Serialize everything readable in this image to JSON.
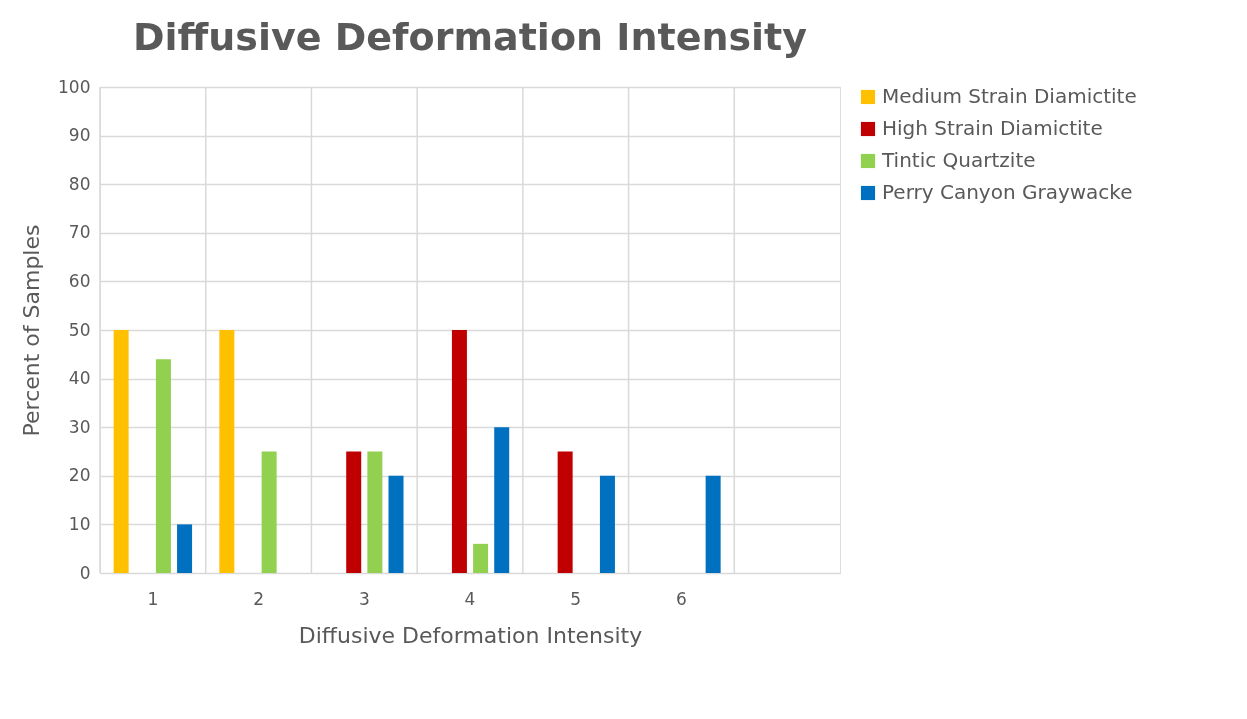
{
  "chart_data": {
    "type": "bar",
    "title": "Diffusive Deformation Intensity",
    "xlabel": "Diffusive Deformation Intensity",
    "ylabel": "Percent of Samples",
    "categories": [
      "1",
      "2",
      "3",
      "4",
      "5",
      "6",
      null
    ],
    "series": [
      {
        "name": "Medium Strain Diamictite",
        "color": "#ffc000",
        "values": [
          50,
          50,
          null,
          null,
          null,
          null,
          null
        ]
      },
      {
        "name": "High Strain Diamictite",
        "color": "#c00000",
        "values": [
          null,
          null,
          25,
          50,
          25,
          null,
          null
        ]
      },
      {
        "name": "Tintic Quartzite",
        "color": "#92d050",
        "values": [
          44,
          25,
          25,
          6,
          null,
          null,
          null
        ]
      },
      {
        "name": "Perry Canyon Graywacke",
        "color": "#0070c0",
        "values": [
          10,
          null,
          20,
          30,
          20,
          20,
          null
        ]
      }
    ],
    "ylim": [
      0,
      100
    ],
    "yticks": [
      0,
      10,
      20,
      30,
      40,
      50,
      60,
      70,
      80,
      90,
      100
    ],
    "grid": true,
    "legend": "right"
  }
}
